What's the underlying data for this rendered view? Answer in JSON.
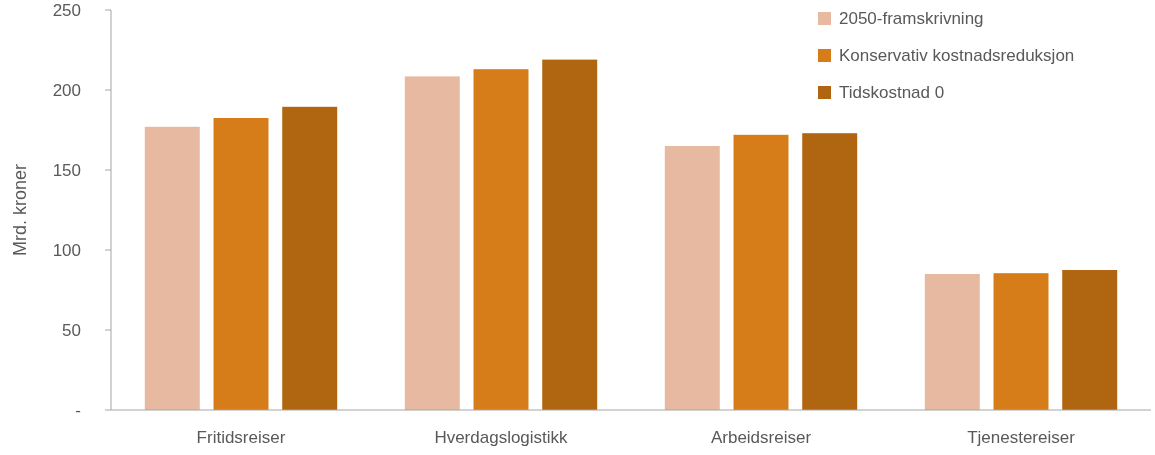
{
  "chart_data": {
    "type": "bar",
    "ylabel": "Mrd. kroner",
    "categories": [
      "Fritidsreiser",
      "Hverdagslogistikk",
      "Arbeidsreiser",
      "Tjenestereiser"
    ],
    "series": [
      {
        "name": "2050-framskrivning",
        "color": "#e6b9a0",
        "values": [
          177,
          208.5,
          165,
          85
        ]
      },
      {
        "name": "Konservativ kostnadsreduksjon",
        "color": "#d67d19",
        "values": [
          182.5,
          213,
          172,
          85.5
        ]
      },
      {
        "name": "Tidskostnad 0",
        "color": "#b06610",
        "values": [
          189.5,
          219,
          173,
          87.5
        ]
      }
    ],
    "ylim": [
      0,
      250
    ],
    "yticks": [
      {
        "value": 0,
        "label": "-"
      },
      50,
      100,
      150,
      200,
      250
    ],
    "grid": false,
    "legend": "top right"
  }
}
